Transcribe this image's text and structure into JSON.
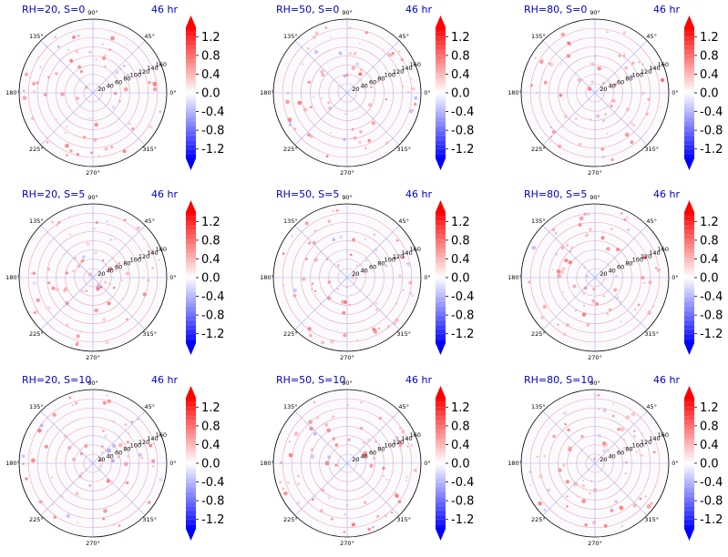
{
  "chart_data": {
    "type": "polar",
    "panels": [
      {
        "title": "RH=20, S=0",
        "time_label": "46 hr"
      },
      {
        "title": "RH=50, S=0",
        "time_label": "46 hr"
      },
      {
        "title": "RH=80, S=0",
        "time_label": "46 hr"
      },
      {
        "title": "RH=20, S=5",
        "time_label": "46 hr"
      },
      {
        "title": "RH=50, S=5",
        "time_label": "46 hr"
      },
      {
        "title": "RH=80, S=5",
        "time_label": "46 hr"
      },
      {
        "title": "RH=20, S=10",
        "time_label": "46 hr"
      },
      {
        "title": "RH=50, S=10",
        "time_label": "46 hr"
      },
      {
        "title": "RH=80, S=10",
        "time_label": "46 hr"
      }
    ],
    "angle_ticks": [
      "0°",
      "45°",
      "90°",
      "135°",
      "180°",
      "225°",
      "270°",
      "315°"
    ],
    "radial_ticks": [
      20,
      40,
      60,
      80,
      100,
      120,
      140,
      160
    ],
    "rmax": 160,
    "colorbar": {
      "colormap": "bwr",
      "ticks": [
        "1.2",
        "0.8",
        "0.4",
        "0.0",
        "-0.4",
        "-0.8",
        "-1.2"
      ],
      "range": [
        -1.4,
        1.4
      ],
      "extend": "both"
    },
    "grid": true
  },
  "colors": {
    "title": "#0000cc",
    "grid_radial": "#f2a3a3",
    "grid_circle": "#a9a9f2",
    "positive": "#ff0000",
    "negative": "#0000ff"
  }
}
